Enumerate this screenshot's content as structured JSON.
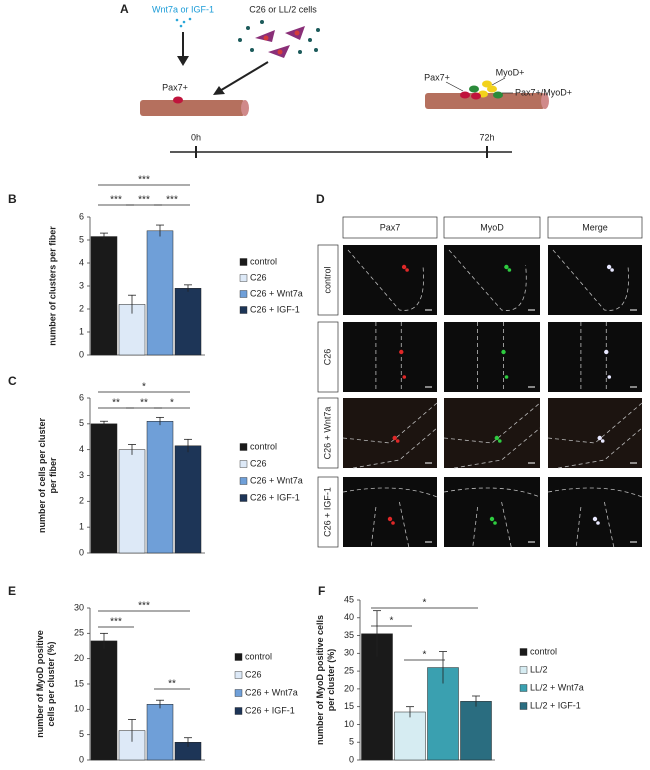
{
  "panel_labels": [
    "A",
    "B",
    "C",
    "D",
    "E",
    "F"
  ],
  "schematic": {
    "treatment": "Wnt7a or IGF-1",
    "cells": "C26 or LL/2 cells",
    "left_label": "Pax7+",
    "right_labels": [
      "Pax7+",
      "MyoD+",
      "Pax7+/MyoD+"
    ],
    "timepoints": [
      "0h",
      "72h"
    ]
  },
  "chart_data": [
    {
      "type": "bar",
      "ylabel": [
        "number of clusters per fiber"
      ],
      "categories": [
        "control",
        "C26",
        "C26 + Wnt7a",
        "C26 + IGF-1"
      ],
      "values": [
        5.15,
        2.2,
        5.4,
        2.9
      ],
      "errors": [
        0.15,
        0.4,
        0.25,
        0.15
      ],
      "colors": [
        "#1a1a1a",
        "#dde9f7",
        "#6f9fd8",
        "#1d3557"
      ],
      "ylim": [
        0,
        6
      ],
      "yticks": [
        0,
        1,
        2,
        3,
        4,
        5,
        6
      ],
      "legend": "right",
      "annotations": [
        {
          "text": "***",
          "between": [
            0,
            3
          ]
        },
        {
          "text": "***",
          "between": [
            0,
            1
          ]
        },
        {
          "text": "***",
          "between": [
            1,
            2
          ]
        },
        {
          "text": "***",
          "between": [
            2,
            3
          ]
        }
      ]
    },
    {
      "type": "bar",
      "ylabel": [
        "number of cells per cluster",
        "per fiber"
      ],
      "categories": [
        "control",
        "C26",
        "C26 + Wnt7a",
        "C26 + IGF-1"
      ],
      "values": [
        5.0,
        4.0,
        5.1,
        4.15
      ],
      "errors": [
        0.1,
        0.2,
        0.15,
        0.25
      ],
      "colors": [
        "#1a1a1a",
        "#dde9f7",
        "#6f9fd8",
        "#1d3557"
      ],
      "ylim": [
        0,
        6
      ],
      "yticks": [
        0,
        1,
        2,
        3,
        4,
        5,
        6
      ],
      "legend": "right",
      "annotations": [
        {
          "text": "*",
          "between": [
            0,
            3
          ]
        },
        {
          "text": "**",
          "between": [
            0,
            1
          ]
        },
        {
          "text": "**",
          "between": [
            1,
            2
          ]
        },
        {
          "text": "*",
          "between": [
            2,
            3
          ]
        }
      ]
    },
    {
      "type": "bar",
      "ylabel": [
        "number of MyoD positive",
        "cells per cluster (%)"
      ],
      "categories": [
        "control",
        "C26",
        "C26 + Wnt7a",
        "C26 + IGF-1"
      ],
      "values": [
        23.5,
        5.8,
        11,
        3.5
      ],
      "errors": [
        1.5,
        2.2,
        0.8,
        0.9
      ],
      "colors": [
        "#1a1a1a",
        "#dde9f7",
        "#6f9fd8",
        "#1d3557"
      ],
      "ylim": [
        0,
        30
      ],
      "yticks": [
        0,
        5,
        10,
        15,
        20,
        25,
        30
      ],
      "legend": "right",
      "annotations": [
        {
          "text": "***",
          "between": [
            0,
            3
          ]
        },
        {
          "text": "***",
          "between": [
            0,
            1
          ]
        },
        {
          "text": "**",
          "between": [
            2,
            3
          ]
        }
      ]
    },
    {
      "type": "bar",
      "ylabel": [
        "number of MyoD positive cells",
        "per cluster (%)"
      ],
      "categories": [
        "control",
        "LL/2",
        "LL/2 + Wnt7a",
        "LL/2 + IGF-1"
      ],
      "values": [
        35.5,
        13.5,
        26,
        16.5
      ],
      "errors": [
        6.5,
        1.5,
        4.5,
        1.5
      ],
      "colors": [
        "#1a1a1a",
        "#d6ecf2",
        "#3aa0b0",
        "#2a6d80"
      ],
      "ylim": [
        0,
        45
      ],
      "yticks": [
        0,
        5,
        10,
        15,
        20,
        25,
        30,
        35,
        40,
        45
      ],
      "legend": "right",
      "annotations": [
        {
          "text": "*",
          "between": [
            0,
            3
          ]
        },
        {
          "text": "*",
          "between": [
            0,
            1
          ]
        },
        {
          "text": "*",
          "between": [
            1,
            2
          ]
        }
      ]
    }
  ],
  "images": {
    "columns": [
      "Pax7",
      "MyoD",
      "Merge"
    ],
    "rows": [
      "control",
      "C26",
      "C26 + Wnt7a",
      "C26 + IGF-1"
    ]
  }
}
